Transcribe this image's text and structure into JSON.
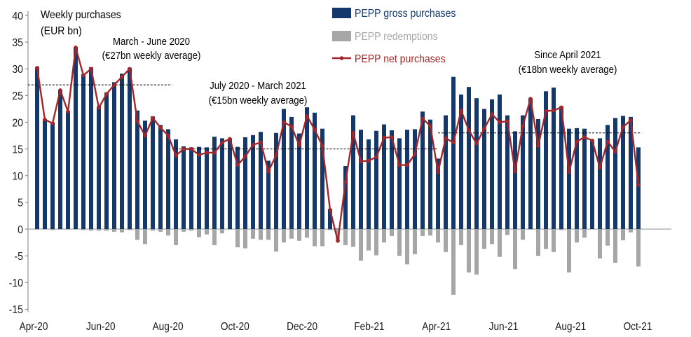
{
  "chart_data": {
    "type": "bar",
    "title": "",
    "xlabel": "",
    "ylabel": [
      "Weekly purchases",
      "(EUR bn)"
    ],
    "ylim": [
      -15,
      40
    ],
    "yticks": [
      40,
      35,
      30,
      25,
      20,
      15,
      10,
      5,
      0,
      -5,
      -10,
      -15
    ],
    "x_tick_labels": [
      "Apr-20",
      "Jun-20",
      "Aug-20",
      "Oct-20",
      "Dec-20",
      "Feb-21",
      "Apr-21",
      "Jun-21",
      "Aug-21",
      "Oct-21"
    ],
    "series": [
      {
        "name": "PEPP gross purchases",
        "color": "#15386a",
        "values": [
          30.3,
          20.6,
          20.0,
          26.1,
          22.1,
          34.1,
          29.0,
          30.3,
          23.0,
          25.6,
          27.5,
          29.1,
          30.2,
          22.2,
          20.3,
          21.1,
          19.5,
          18.7,
          16.8,
          15.5,
          15.3,
          15.4,
          15.3,
          17.3,
          17.0,
          17.0,
          15.4,
          17.2,
          17.6,
          18.2,
          12.8,
          18.0,
          22.5,
          21.0,
          17.9,
          22.8,
          21.8,
          18.8,
          3.8,
          0.1,
          11.8,
          21.3,
          18.6,
          16.8,
          18.4,
          19.6,
          18.5,
          17.0,
          18.6,
          18.7,
          22.0,
          20.5,
          13.2,
          21.3,
          28.5,
          25.2,
          26.6,
          24.5,
          22.5,
          24.3,
          25.2,
          21.3,
          18.3,
          21.3,
          24.5,
          20.6,
          25.8,
          26.5,
          23.0,
          18.8,
          18.9,
          18.8,
          16.6,
          17.0,
          19.5,
          20.8,
          21.2,
          21.0,
          15.3
        ]
      },
      {
        "name": "PEPP redemptions",
        "color": "#a6a6a6",
        "values": [
          -0.1,
          -0.1,
          -0.2,
          -0.1,
          -0.1,
          -0.1,
          -0.2,
          -0.3,
          -0.3,
          -0.3,
          -0.5,
          -0.6,
          -0.2,
          -2.0,
          -2.8,
          -0.3,
          -0.5,
          -1.2,
          -3.0,
          -0.5,
          -0.3,
          -1.5,
          -1.0,
          -3.0,
          -0.8,
          -0.1,
          -3.4,
          -3.6,
          -1.8,
          -2.0,
          -2.0,
          -4.2,
          -2.5,
          -1.8,
          -2.2,
          -1.6,
          -3.2,
          -3.2,
          -0.2,
          -2.3,
          -3.0,
          -3.3,
          -5.9,
          -4.0,
          -4.9,
          -2.5,
          -1.3,
          -5.0,
          -6.6,
          -4.7,
          -1.3,
          -1.2,
          -2.5,
          -4.3,
          -12.3,
          -3.0,
          -8.1,
          -8.5,
          -3.7,
          -2.8,
          -5.2,
          -1.1,
          -7.5,
          -2.0,
          -0.1,
          -5.0,
          -3.7,
          -4.3,
          -0.2,
          -8.1,
          -2.5,
          -1.6,
          0.0,
          -5.5,
          -3.1,
          -6.3,
          -2.1,
          -0.6,
          -7.0
        ]
      },
      {
        "name": "PEPP net purchases",
        "color": "#a3262a",
        "values": [
          30.2,
          20.5,
          19.8,
          26.0,
          22.0,
          34.0,
          28.8,
          30.0,
          22.7,
          25.3,
          27.0,
          28.5,
          30.0,
          20.2,
          17.5,
          20.8,
          19.0,
          17.5,
          13.8,
          15.0,
          15.0,
          13.9,
          14.3,
          14.3,
          16.2,
          16.9,
          12.0,
          13.6,
          15.8,
          16.2,
          10.8,
          13.8,
          20.0,
          19.2,
          15.7,
          21.2,
          18.6,
          15.6,
          3.6,
          -2.2,
          8.8,
          18.0,
          12.7,
          12.8,
          13.5,
          17.1,
          17.2,
          12.0,
          12.0,
          14.0,
          20.7,
          19.3,
          10.7,
          17.0,
          16.2,
          22.2,
          18.5,
          16.0,
          18.8,
          21.5,
          20.0,
          20.2,
          10.8,
          19.3,
          24.4,
          15.6,
          22.1,
          22.2,
          22.8,
          10.7,
          16.4,
          17.2,
          16.6,
          11.5,
          16.4,
          14.5,
          19.1,
          20.4,
          8.3
        ]
      }
    ],
    "reference_lines": [
      {
        "value": 27,
        "start_week": -1.2,
        "end_week": 17.5
      },
      {
        "value": 15,
        "start_week": 17.5,
        "end_week": 52.0
      },
      {
        "value": 18,
        "start_week": 52.0,
        "end_week": 78.4
      }
    ],
    "annotations": [
      {
        "line1": "March - June 2020",
        "line2": "(€27bn weekly average)"
      },
      {
        "line1": "July 2020 - March 2021",
        "line2": "(€15bn weekly average)"
      },
      {
        "line1": "Since April 2021",
        "line2": "(€18bn weekly average)"
      }
    ]
  }
}
